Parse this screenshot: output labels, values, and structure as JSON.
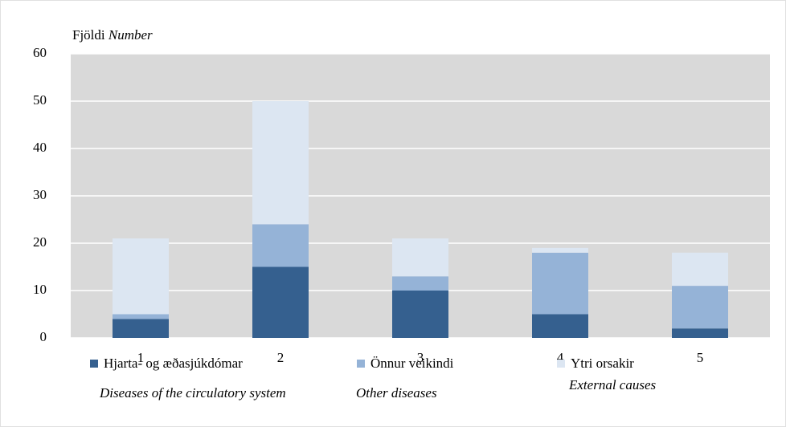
{
  "chart_data": {
    "type": "stacked_bar",
    "y_label": "Fjöldi",
    "y_label_en": "Number",
    "categories": [
      "1",
      "2",
      "3",
      "4",
      "5"
    ],
    "series": [
      {
        "name": "Hjarta- og æðasjúkdómar",
        "name_en": "Diseases of the circulatory system",
        "color": "#35608f",
        "values": [
          4,
          15,
          10,
          5,
          2
        ]
      },
      {
        "name": "Önnur veikindi",
        "name_en": "Other diseases",
        "color": "#95b3d7",
        "values": [
          1,
          9,
          3,
          13,
          9
        ]
      },
      {
        "name": "Ytri orsakir",
        "name_en": "External causes",
        "color": "#dce6f2",
        "values": [
          16,
          26,
          8,
          1,
          7
        ]
      }
    ],
    "ylim": [
      0,
      60
    ],
    "yticks": [
      0,
      10,
      20,
      30,
      40,
      50,
      60
    ],
    "grid": true
  }
}
